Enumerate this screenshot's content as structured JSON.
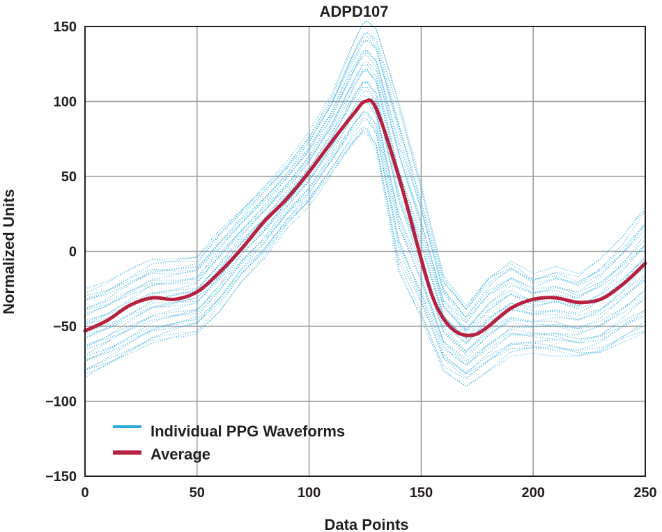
{
  "chart_data": {
    "type": "line",
    "title": "ADPD107",
    "xlabel": "Data Points",
    "ylabel": "Normalized Units",
    "xlim": [
      0,
      250
    ],
    "ylim": [
      -150,
      150
    ],
    "x_ticks": [
      "0",
      "50",
      "100",
      "150",
      "200",
      "250"
    ],
    "y_ticks": [
      "150",
      "100",
      "50",
      "0",
      "−50",
      "−100",
      "−150"
    ],
    "grid": true,
    "legend_position": "bottom-left",
    "colors": {
      "individual": "#29a8e0",
      "average": "#b5213f",
      "grid": "#9a9a9a",
      "axis": "#231f20"
    },
    "series": [
      {
        "name": "Individual PPG Waveforms",
        "role": "individual",
        "x": [
          0,
          10,
          20,
          30,
          40,
          50,
          60,
          70,
          80,
          90,
          100,
          110,
          120,
          125,
          130,
          140,
          150,
          160,
          170,
          180,
          190,
          200,
          210,
          220,
          230,
          240,
          250
        ],
        "envelope_high": [
          -25,
          -20,
          -12,
          -5,
          -5,
          -3,
          15,
          30,
          45,
          60,
          80,
          105,
          140,
          155,
          148,
          100,
          45,
          -15,
          -35,
          -15,
          -5,
          -15,
          -10,
          -15,
          -5,
          10,
          30
        ],
        "envelope_low": [
          -85,
          -78,
          -70,
          -62,
          -58,
          -55,
          -40,
          -20,
          -5,
          15,
          30,
          50,
          70,
          78,
          65,
          -15,
          -45,
          -80,
          -90,
          -80,
          -70,
          -68,
          -70,
          -72,
          -70,
          -62,
          -55
        ]
      },
      {
        "name": "Average",
        "role": "average",
        "x": [
          0,
          10,
          20,
          30,
          40,
          50,
          60,
          70,
          80,
          90,
          100,
          110,
          120,
          125,
          130,
          140,
          150,
          155,
          160,
          165,
          170,
          175,
          180,
          190,
          200,
          210,
          220,
          230,
          240,
          250
        ],
        "y": [
          -53,
          -46,
          -36,
          -31,
          -32,
          -27,
          -14,
          2,
          20,
          35,
          53,
          73,
          92,
          100,
          95,
          50,
          -5,
          -30,
          -45,
          -53,
          -56,
          -55,
          -50,
          -38,
          -32,
          -31,
          -34,
          -32,
          -22,
          -8
        ]
      }
    ]
  }
}
